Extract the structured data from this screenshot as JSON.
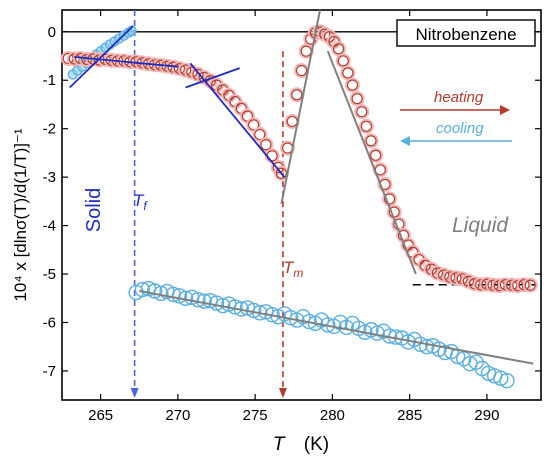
{
  "chart_data": {
    "type": "scatter",
    "title": "Nitrobenzene",
    "xlabel": "T (K)",
    "xlabel_symbol": "T",
    "xlabel_unit": "(K)",
    "ylabel": "10⁴ x [dlnσ(T)/d(1/T)]⁻¹",
    "xlim": [
      262.5,
      293.5
    ],
    "ylim": [
      -7.6,
      0.45
    ],
    "xticks": [
      265,
      270,
      275,
      280,
      285,
      290
    ],
    "yticks": [
      0,
      -1,
      -2,
      -3,
      -4,
      -5,
      -6,
      -7
    ],
    "grid": false,
    "legend": "right",
    "colors": {
      "heating": "#b23a2b",
      "cooling": "#5aaee0",
      "blue_fit": "#1f2bbf",
      "gray_fit": "#808080"
    },
    "legend_entries": {
      "heating": "heating",
      "cooling": "cooling"
    },
    "annotations": {
      "Tf_label": "T",
      "Tf_sub": "f",
      "Tm_label": "T",
      "Tm_sub": "m",
      "solid": "Solid",
      "liquid": "Liquid"
    },
    "markers": {
      "Tf": 267.2,
      "Tm": 276.8
    },
    "series": [
      {
        "name": "heating",
        "x": [
          262.9,
          263.3,
          263.7,
          264.1,
          264.5,
          264.9,
          265.3,
          265.7,
          266.1,
          266.5,
          266.9,
          267.3,
          267.7,
          268.1,
          268.5,
          268.9,
          269.3,
          269.7,
          270.1,
          270.5,
          270.9,
          271.3,
          271.7,
          272.1,
          272.5,
          272.9,
          273.3,
          273.7,
          274.1,
          274.5,
          274.9,
          275.3,
          275.7,
          276.1,
          276.5,
          276.7,
          277.1,
          277.4,
          277.7,
          278.0,
          278.3,
          278.6,
          278.9,
          279.2,
          279.5,
          279.8,
          280.1,
          280.4,
          280.7,
          281.0,
          281.3,
          281.6,
          281.9,
          282.2,
          282.5,
          282.8,
          283.1,
          283.4,
          283.7,
          284.0,
          284.3,
          284.6,
          284.9,
          285.2,
          285.6,
          286.0,
          286.4,
          286.8,
          287.2,
          287.6,
          288.0,
          288.4,
          288.8,
          289.2,
          289.6,
          290.0,
          290.4,
          290.8,
          291.2,
          291.6,
          292.0,
          292.4,
          292.8
        ],
        "values": [
          -0.55,
          -0.56,
          -0.55,
          -0.57,
          -0.56,
          -0.58,
          -0.57,
          -0.59,
          -0.6,
          -0.6,
          -0.62,
          -0.62,
          -0.64,
          -0.66,
          -0.68,
          -0.69,
          -0.71,
          -0.73,
          -0.76,
          -0.79,
          -0.83,
          -0.88,
          -0.94,
          -1.01,
          -1.1,
          -1.2,
          -1.31,
          -1.44,
          -1.58,
          -1.74,
          -1.92,
          -2.12,
          -2.33,
          -2.56,
          -2.8,
          -2.92,
          -2.4,
          -1.85,
          -1.3,
          -0.8,
          -0.4,
          -0.15,
          -0.02,
          0.0,
          -0.05,
          -0.1,
          -0.2,
          -0.35,
          -0.6,
          -0.85,
          -1.1,
          -1.38,
          -1.65,
          -1.95,
          -2.25,
          -2.55,
          -2.85,
          -3.15,
          -3.45,
          -3.72,
          -3.97,
          -4.2,
          -4.4,
          -4.55,
          -4.7,
          -4.82,
          -4.9,
          -4.98,
          -5.02,
          -5.06,
          -5.08,
          -5.1,
          -5.15,
          -5.2,
          -5.22,
          -5.21,
          -5.23,
          -5.24,
          -5.22,
          -5.23,
          -5.24,
          -5.22,
          -5.23
        ]
      },
      {
        "name": "cooling",
        "x": [
          263.2,
          263.5,
          263.8,
          264.1,
          264.4,
          264.7,
          265.0,
          265.3,
          265.6,
          265.9,
          266.2,
          266.5,
          266.8,
          267.0,
          267.3,
          267.7,
          268.1,
          268.5,
          268.9,
          269.3,
          269.7,
          270.1,
          270.5,
          270.9,
          271.3,
          271.7,
          272.1,
          272.5,
          272.9,
          273.3,
          273.7,
          274.1,
          274.5,
          274.9,
          275.3,
          275.7,
          276.1,
          276.5,
          276.9,
          277.3,
          277.7,
          278.1,
          278.5,
          278.9,
          279.3,
          279.7,
          280.1,
          280.5,
          280.9,
          281.3,
          281.7,
          282.1,
          282.5,
          282.9,
          283.3,
          283.7,
          284.1,
          284.5,
          284.9,
          285.3,
          285.7,
          286.1,
          286.5,
          286.9,
          287.3,
          287.7,
          288.1,
          288.5,
          288.9,
          289.3,
          289.7,
          290.1,
          290.5,
          290.9,
          291.3
        ],
        "values": [
          -0.88,
          -0.8,
          -0.72,
          -0.64,
          -0.55,
          -0.47,
          -0.4,
          -0.33,
          -0.26,
          -0.2,
          -0.14,
          -0.08,
          -0.02,
          0.02,
          -5.38,
          -5.32,
          -5.3,
          -5.35,
          -5.4,
          -5.36,
          -5.42,
          -5.45,
          -5.5,
          -5.48,
          -5.53,
          -5.56,
          -5.55,
          -5.6,
          -5.65,
          -5.62,
          -5.68,
          -5.72,
          -5.7,
          -5.75,
          -5.8,
          -5.78,
          -5.84,
          -5.88,
          -5.82,
          -5.9,
          -5.95,
          -5.88,
          -5.98,
          -6.02,
          -5.95,
          -6.05,
          -6.08,
          -6.0,
          -6.1,
          -6.02,
          -6.12,
          -6.2,
          -6.15,
          -6.22,
          -6.18,
          -6.28,
          -6.3,
          -6.32,
          -6.4,
          -6.35,
          -6.45,
          -6.5,
          -6.48,
          -6.55,
          -6.62,
          -6.6,
          -6.7,
          -6.75,
          -6.85,
          -6.82,
          -6.95,
          -7.05,
          -7.1,
          -7.15,
          -7.2
        ]
      }
    ],
    "fit_lines": [
      {
        "name": "blue-fit-solid",
        "color": "#1f2bbf",
        "x": [
          263.0,
          267.1
        ],
        "y": [
          -1.15,
          0.12
        ]
      },
      {
        "name": "blue-fit-flat",
        "color": "#1f2bbf",
        "x": [
          263.3,
          270.0
        ],
        "y": [
          -0.52,
          -0.72
        ]
      },
      {
        "name": "blue-fit-steep",
        "color": "#1f2bbf",
        "x": [
          270.8,
          276.9
        ],
        "y": [
          -0.65,
          -3.0
        ]
      },
      {
        "name": "blue-fit-cross",
        "color": "#1f2bbf",
        "x": [
          270.5,
          274.0
        ],
        "y": [
          -1.15,
          -0.75
        ]
      },
      {
        "name": "gray-fit-rise",
        "color": "#808080",
        "x": [
          276.7,
          279.2
        ],
        "y": [
          -3.55,
          0.45
        ]
      },
      {
        "name": "gray-fit-fall",
        "color": "#808080",
        "x": [
          279.7,
          285.4
        ],
        "y": [
          -0.4,
          -5.0
        ]
      },
      {
        "name": "gray-fit-cooling",
        "color": "#808080",
        "x": [
          267.5,
          293.0
        ],
        "y": [
          -5.35,
          -6.85
        ]
      }
    ]
  }
}
